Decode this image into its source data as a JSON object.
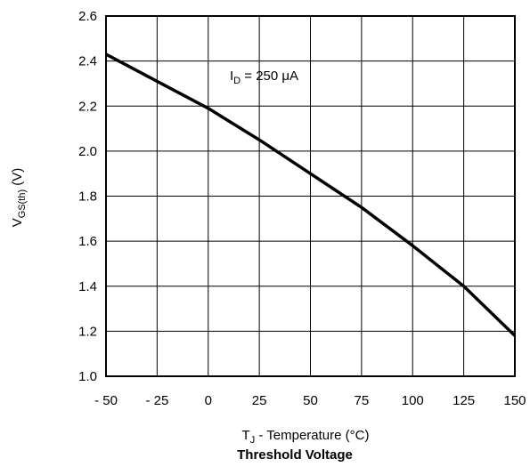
{
  "chart_data": {
    "type": "line",
    "caption": "Threshold Voltage",
    "xlabel": {
      "main": "T",
      "sub": "J",
      "rest": " - Temperature (°C)"
    },
    "ylabel": {
      "main": "V",
      "sub": "GS(th)",
      "rest": " (V)"
    },
    "annotation": {
      "main": "I",
      "sub": "D",
      "rest": " = 250 μA"
    },
    "xlim": [
      -50,
      150
    ],
    "ylim": [
      1.0,
      2.6
    ],
    "x_ticks": [
      -50,
      -25,
      0,
      25,
      50,
      75,
      100,
      125,
      150
    ],
    "x_tick_labels": [
      "- 50",
      "- 25",
      "0",
      "25",
      "50",
      "75",
      "100",
      "125",
      "150"
    ],
    "y_ticks": [
      1.0,
      1.2,
      1.4,
      1.6,
      1.8,
      2.0,
      2.2,
      2.4,
      2.6
    ],
    "y_tick_labels": [
      "1.0",
      "1.2",
      "1.4",
      "1.6",
      "1.8",
      "2.0",
      "2.2",
      "2.4",
      "2.6"
    ],
    "grid": true,
    "series": [
      {
        "x": [
          -50,
          -25,
          0,
          25,
          50,
          75,
          100,
          125,
          150
        ],
        "y": [
          2.43,
          2.31,
          2.19,
          2.05,
          1.9,
          1.75,
          1.58,
          1.4,
          1.18
        ],
        "color": "#000000"
      }
    ]
  }
}
